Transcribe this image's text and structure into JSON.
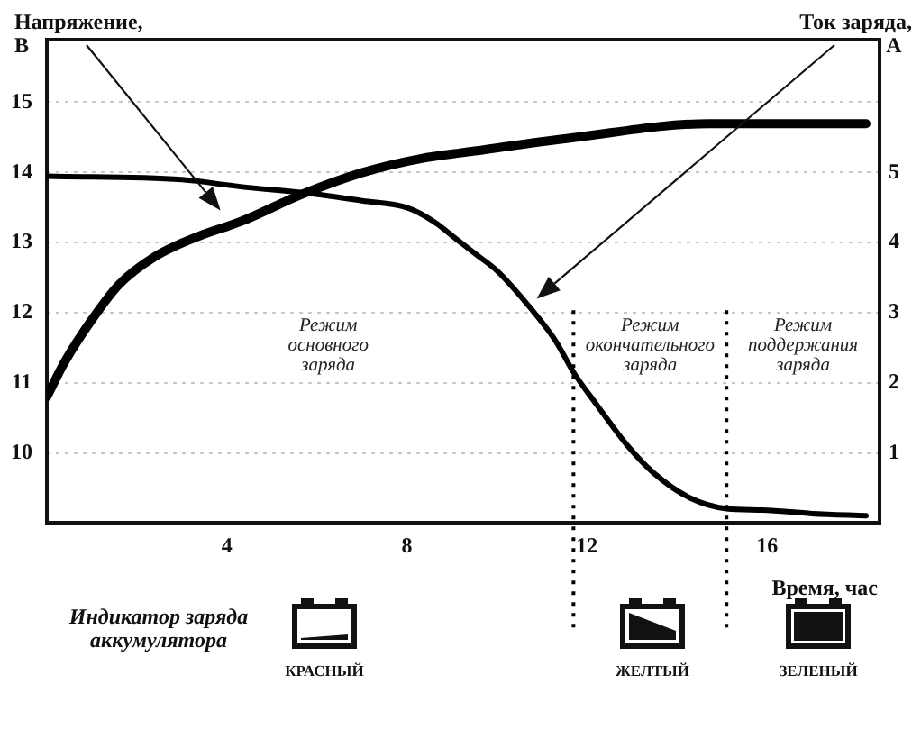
{
  "chart_data": {
    "type": "line",
    "xlabel": "Время, час",
    "ylabel": "Напряжение, В",
    "y2label": "Ток заряда, А",
    "xlim": [
      0,
      18.5
    ],
    "xticks": [
      4,
      8,
      12,
      16
    ],
    "ylim": [
      9,
      15.9
    ],
    "yticks": [
      10,
      11,
      12,
      13,
      14,
      15
    ],
    "y2lim": [
      0,
      6.9
    ],
    "y2ticks": [
      1,
      2,
      3,
      4,
      5
    ],
    "grid": "y",
    "line_style": "solid",
    "series": [
      {
        "color": "#000000",
        "x": [
          0,
          0.4,
          1,
          1.6,
          2.4,
          3.4,
          4.3,
          5.7,
          7,
          8.3,
          9.4,
          11.7,
          14.7,
          18.2
        ],
        "values": [
          10.8,
          11.3,
          11.9,
          12.4,
          12.8,
          13.1,
          13.3,
          13.7,
          14,
          14.2,
          14.3,
          14.5,
          14.7,
          14.7
        ]
      },
      {
        "color": "#000000",
        "axis": "y2",
        "x": [
          0,
          3,
          4.3,
          5.9,
          7,
          8,
          8.6,
          9.1,
          9.5,
          10,
          10.7,
          11.3,
          11.7,
          12.2,
          12.9,
          13.5,
          14.3,
          15.1,
          15.9,
          17,
          18.2
        ],
        "values": [
          4.95,
          4.9,
          4.8,
          4.7,
          4.6,
          4.5,
          4.3,
          4.05,
          3.85,
          3.6,
          3.1,
          2.6,
          2.15,
          1.7,
          1.1,
          0.7,
          0.35,
          0.2,
          0.18,
          0.13,
          0.1
        ]
      }
    ],
    "ref_lines": [
      {
        "axis": "x",
        "value": 11.7,
        "color": "#000000",
        "line_style": "dotted"
      },
      {
        "axis": "x",
        "value": 15.1,
        "color": "#000000",
        "line_style": "dotted"
      }
    ],
    "annotations": [
      "Режим основного заряда",
      "Режим окончательного заряда",
      "Режим поддержания заряда",
      "Индикатор заряда аккумулятора",
      "КРАСНЫЙ",
      "ЖЕЛТЫЙ",
      "ЗЕЛЕНЫЙ"
    ]
  }
}
